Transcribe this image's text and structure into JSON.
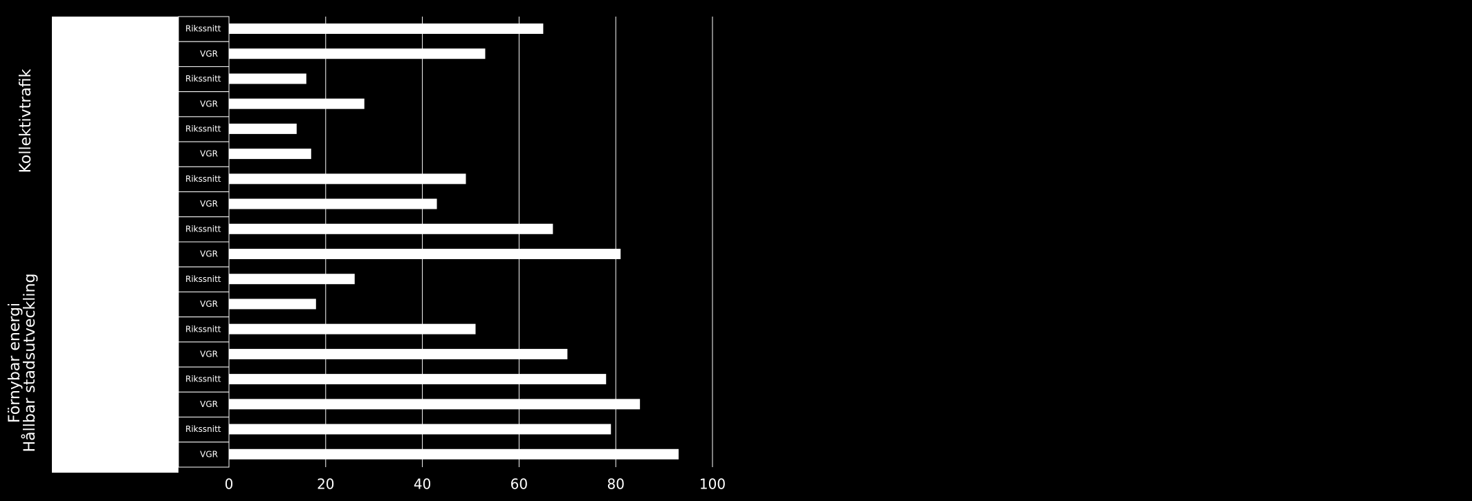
{
  "chart_data": {
    "type": "bar",
    "orientation": "horizontal",
    "group_labels": [
      "Kollektivtrafik",
      "Förnybar energi",
      "Hållbar stadsutveckling"
    ],
    "categories": [
      "Rikssnitt",
      "VGR",
      "Rikssnitt",
      "VGR",
      "Rikssnitt",
      "VGR",
      "Rikssnitt",
      "VGR",
      "Rikssnitt",
      "VGR",
      "Rikssnitt",
      "VGR",
      "Rikssnitt",
      "VGR",
      "Rikssnitt",
      "VGR",
      "Rikssnitt",
      "VGR"
    ],
    "values": [
      65,
      53,
      16,
      28,
      14,
      17,
      49,
      43,
      67,
      81,
      26,
      18,
      51,
      70,
      78,
      85,
      79,
      93
    ],
    "color": "#ffffff",
    "xlim": [
      0,
      100
    ],
    "xticks": [
      0,
      20,
      40,
      60,
      80,
      100
    ],
    "grid": true
  }
}
